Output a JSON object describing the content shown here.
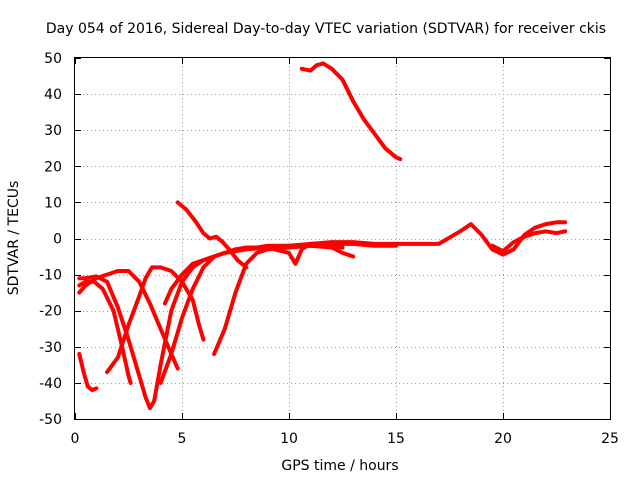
{
  "chart_data": {
    "type": "line",
    "title": "Day 054 of 2016, Sidereal Day-to-day VTEC variation (SDTVAR) for receiver ckis",
    "xlabel": "GPS time / hours",
    "ylabel": "SDTVAR / TECUs",
    "xlim": [
      0,
      25
    ],
    "ylim": [
      -50,
      50
    ],
    "xticks": [
      0,
      5,
      10,
      15,
      20,
      25
    ],
    "yticks": [
      -50,
      -40,
      -30,
      -20,
      -10,
      0,
      10,
      20,
      30,
      40,
      50
    ],
    "grid": true,
    "color": "#ff0000",
    "series": [
      {
        "name": "s1",
        "points": [
          [
            0.2,
            -32
          ],
          [
            0.4,
            -37
          ],
          [
            0.6,
            -41
          ],
          [
            0.8,
            -42
          ],
          [
            1.0,
            -41.5
          ]
        ]
      },
      {
        "name": "s2",
        "points": [
          [
            0.2,
            -11
          ],
          [
            0.5,
            -11
          ],
          [
            1.0,
            -10.5
          ],
          [
            1.5,
            -12
          ],
          [
            2.0,
            -19
          ],
          [
            2.5,
            -28
          ],
          [
            3.0,
            -38
          ],
          [
            3.3,
            -44
          ],
          [
            3.5,
            -47
          ],
          [
            3.7,
            -45
          ],
          [
            4.0,
            -35
          ],
          [
            4.5,
            -20
          ],
          [
            5.0,
            -12
          ],
          [
            5.5,
            -8
          ],
          [
            6.0,
            -6
          ],
          [
            7.0,
            -4
          ],
          [
            8.0,
            -3
          ],
          [
            9.0,
            -2
          ],
          [
            10.0,
            -2
          ],
          [
            11.0,
            -1.5
          ],
          [
            12.0,
            -1.5
          ],
          [
            13.0,
            -1.5
          ],
          [
            14.0,
            -2
          ],
          [
            15.0,
            -2
          ]
        ]
      },
      {
        "name": "s3",
        "points": [
          [
            0.2,
            -13
          ],
          [
            0.5,
            -12
          ],
          [
            0.9,
            -12
          ],
          [
            1.3,
            -14
          ],
          [
            1.8,
            -20
          ],
          [
            2.2,
            -30
          ],
          [
            2.5,
            -38
          ],
          [
            2.6,
            -40
          ]
        ]
      },
      {
        "name": "s4",
        "points": [
          [
            0.2,
            -15
          ],
          [
            0.5,
            -13
          ],
          [
            1.0,
            -11
          ],
          [
            1.5,
            -10
          ],
          [
            2.0,
            -9
          ],
          [
            2.5,
            -9
          ],
          [
            3.0,
            -12
          ],
          [
            3.5,
            -18
          ],
          [
            4.0,
            -25
          ],
          [
            4.5,
            -32
          ],
          [
            4.8,
            -36
          ]
        ]
      },
      {
        "name": "s5",
        "points": [
          [
            1.5,
            -37
          ],
          [
            2.0,
            -33
          ],
          [
            2.5,
            -24
          ],
          [
            3.0,
            -16
          ],
          [
            3.3,
            -11
          ],
          [
            3.6,
            -8
          ],
          [
            4.0,
            -8
          ],
          [
            4.5,
            -9
          ],
          [
            5.0,
            -12
          ],
          [
            5.5,
            -17
          ],
          [
            5.8,
            -24
          ],
          [
            6.0,
            -28
          ]
        ]
      },
      {
        "name": "s6",
        "points": [
          [
            4.0,
            -40
          ],
          [
            4.5,
            -32
          ],
          [
            5.0,
            -22
          ],
          [
            5.5,
            -14
          ],
          [
            6.0,
            -8
          ],
          [
            6.5,
            -5
          ],
          [
            7.0,
            -4
          ],
          [
            8.0,
            -3
          ],
          [
            9.0,
            -2.5
          ],
          [
            10.0,
            -2
          ],
          [
            11.0,
            -2
          ],
          [
            12.0,
            -2
          ],
          [
            12.5,
            -2.5
          ]
        ]
      },
      {
        "name": "s7",
        "points": [
          [
            4.2,
            -18
          ],
          [
            4.5,
            -14
          ],
          [
            5.0,
            -10
          ],
          [
            5.5,
            -7
          ],
          [
            6.0,
            -6
          ],
          [
            6.5,
            -5
          ],
          [
            7.0,
            -4
          ],
          [
            7.5,
            -3
          ],
          [
            8.0,
            -2.5
          ],
          [
            9.0,
            -2.5
          ],
          [
            10.0,
            -4
          ],
          [
            10.3,
            -7
          ],
          [
            10.6,
            -3
          ],
          [
            11.0,
            -1.5
          ],
          [
            12.0,
            -1
          ],
          [
            13.0,
            -1
          ],
          [
            14.0,
            -1.5
          ],
          [
            15.0,
            -1.5
          ],
          [
            16.0,
            -1.5
          ],
          [
            17.0,
            -1.5
          ],
          [
            18.0,
            2
          ],
          [
            18.5,
            4
          ],
          [
            19.0,
            1
          ],
          [
            19.5,
            -3
          ],
          [
            20.0,
            -4.5
          ],
          [
            20.5,
            -3
          ],
          [
            21.0,
            1
          ],
          [
            21.5,
            3
          ],
          [
            22.0,
            4
          ],
          [
            22.5,
            4.5
          ],
          [
            22.9,
            4.5
          ]
        ]
      },
      {
        "name": "s8",
        "points": [
          [
            6.5,
            -32
          ],
          [
            7.0,
            -25
          ],
          [
            7.5,
            -15
          ],
          [
            8.0,
            -7
          ],
          [
            8.5,
            -4
          ],
          [
            9.0,
            -3
          ],
          [
            10.0,
            -2.5
          ],
          [
            11.0,
            -2
          ],
          [
            12.0,
            -2.5
          ],
          [
            12.5,
            -4
          ],
          [
            13.0,
            -5
          ]
        ]
      },
      {
        "name": "s9",
        "points": [
          [
            4.8,
            10
          ],
          [
            5.2,
            8
          ],
          [
            5.6,
            5
          ],
          [
            6.0,
            1.5
          ],
          [
            6.3,
            0
          ],
          [
            6.6,
            0.5
          ],
          [
            6.9,
            -1
          ],
          [
            7.2,
            -3
          ],
          [
            7.6,
            -6
          ],
          [
            8.0,
            -8
          ]
        ]
      },
      {
        "name": "s10",
        "points": [
          [
            10.6,
            47
          ],
          [
            11.0,
            46.5
          ],
          [
            11.3,
            48
          ],
          [
            11.6,
            48.5
          ],
          [
            12.0,
            47
          ],
          [
            12.5,
            44
          ],
          [
            13.0,
            38
          ],
          [
            13.5,
            33
          ],
          [
            14.0,
            29
          ],
          [
            14.5,
            25
          ],
          [
            15.0,
            22.5
          ],
          [
            15.2,
            22
          ]
        ]
      },
      {
        "name": "s11",
        "points": [
          [
            19.5,
            -2
          ],
          [
            20.0,
            -3.5
          ],
          [
            20.5,
            -1
          ],
          [
            21.0,
            0.5
          ],
          [
            21.5,
            1.5
          ],
          [
            22.0,
            2
          ],
          [
            22.5,
            1.5
          ],
          [
            22.9,
            2
          ]
        ]
      }
    ]
  }
}
